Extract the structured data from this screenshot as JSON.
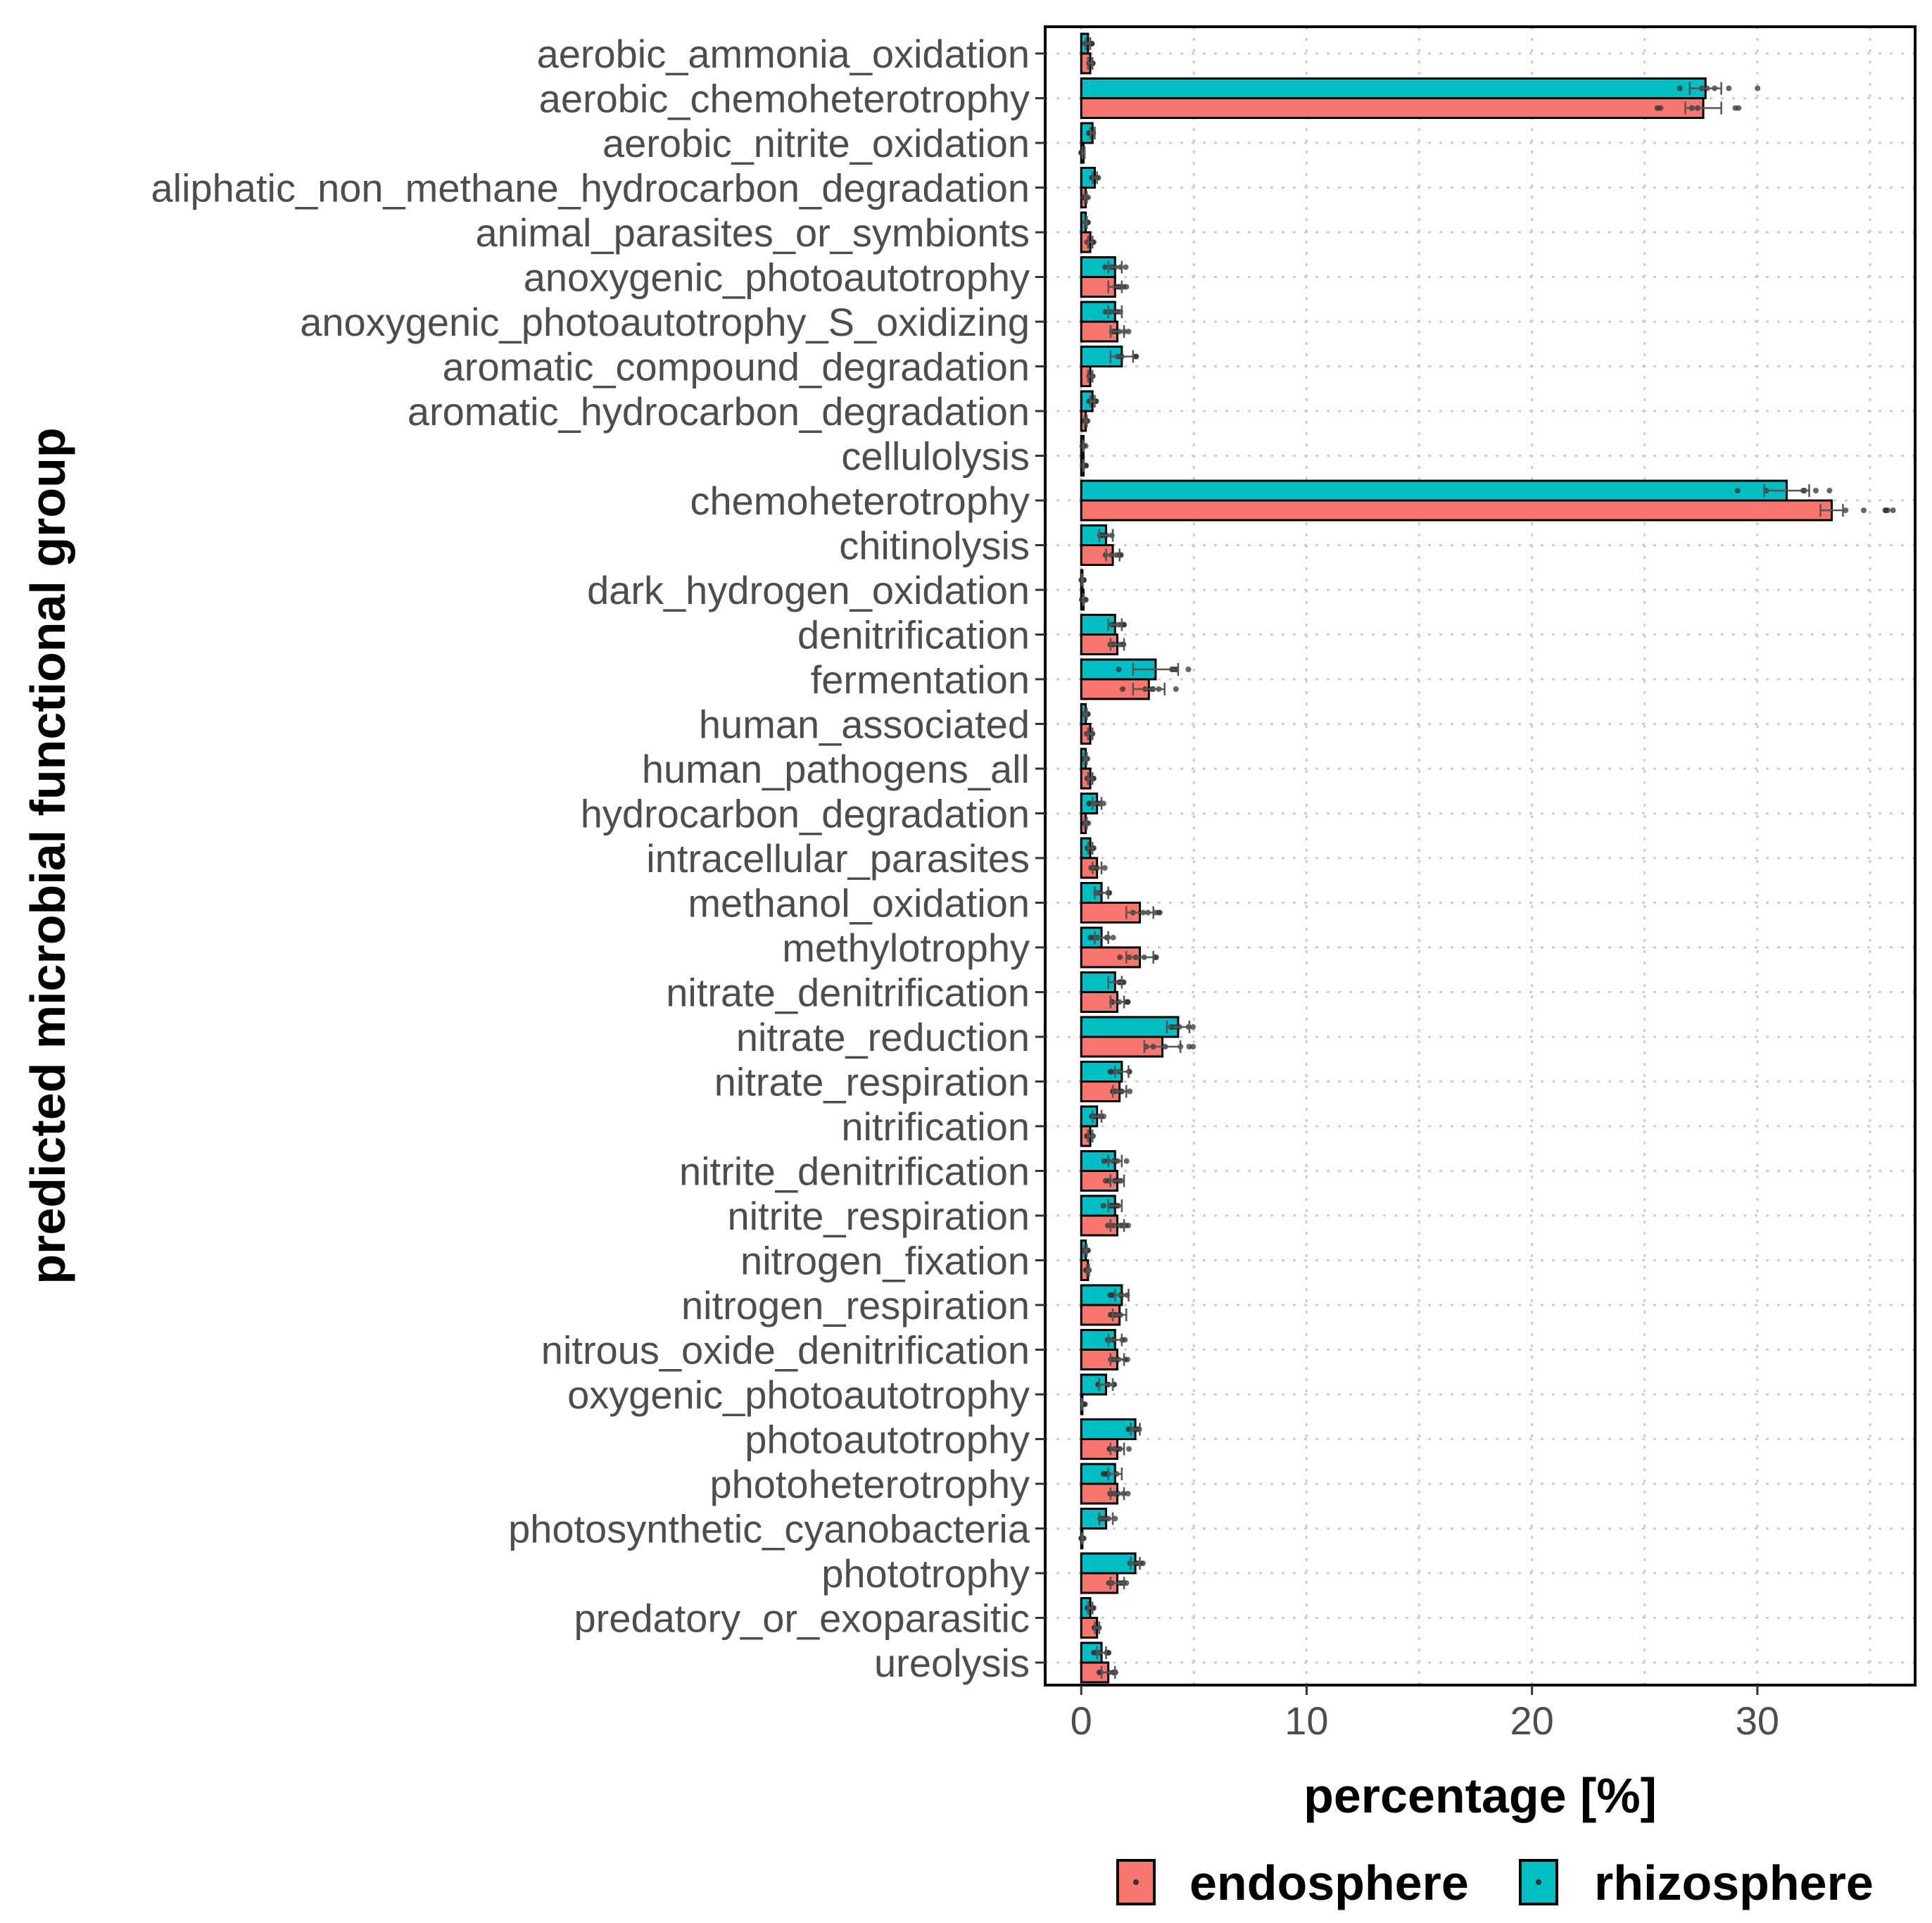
{
  "chart_data": {
    "type": "bar",
    "orientation": "horizontal",
    "xlabel": "percentage [%]",
    "ylabel": "predicted microbial functional group",
    "xlim": [
      -1.6,
      37
    ],
    "xticks": [
      0,
      10,
      20,
      30
    ],
    "xtick_labels": [
      "0",
      "10",
      "20",
      "30"
    ],
    "grid": true,
    "legend_position": "bottom",
    "categories": [
      "aerobic_ammonia_oxidation",
      "aerobic_chemoheterotrophy",
      "aerobic_nitrite_oxidation",
      "aliphatic_non_methane_hydrocarbon_degradation",
      "animal_parasites_or_symbionts",
      "anoxygenic_photoautotrophy",
      "anoxygenic_photoautotrophy_S_oxidizing",
      "aromatic_compound_degradation",
      "aromatic_hydrocarbon_degradation",
      "cellulolysis",
      "chemoheterotrophy",
      "chitinolysis",
      "dark_hydrogen_oxidation",
      "denitrification",
      "fermentation",
      "human_associated",
      "human_pathogens_all",
      "hydrocarbon_degradation",
      "intracellular_parasites",
      "methanol_oxidation",
      "methylotrophy",
      "nitrate_denitrification",
      "nitrate_reduction",
      "nitrate_respiration",
      "nitrification",
      "nitrite_denitrification",
      "nitrite_respiration",
      "nitrogen_fixation",
      "nitrogen_respiration",
      "nitrous_oxide_denitrification",
      "oxygenic_photoautotrophy",
      "photoautotrophy",
      "photoheterotrophy",
      "photosynthetic_cyanobacteria",
      "phototrophy",
      "predatory_or_exoparasitic",
      "ureolysis"
    ],
    "series": [
      {
        "name": "rhizosphere",
        "color": "#00BFC4",
        "values": [
          0.3,
          27.7,
          0.5,
          0.6,
          0.2,
          1.5,
          1.5,
          1.8,
          0.5,
          0.1,
          31.3,
          1.1,
          0.05,
          1.5,
          3.3,
          0.2,
          0.2,
          0.7,
          0.4,
          0.9,
          0.9,
          1.5,
          4.3,
          1.8,
          0.7,
          1.5,
          1.5,
          0.2,
          1.8,
          1.5,
          1.1,
          2.4,
          1.5,
          1.1,
          2.4,
          0.4,
          0.9
        ],
        "errors": [
          0.1,
          0.7,
          0.1,
          0.1,
          0.05,
          0.3,
          0.3,
          0.5,
          0.1,
          0.02,
          1.0,
          0.3,
          0.02,
          0.3,
          1.0,
          0.05,
          0.05,
          0.2,
          0.1,
          0.3,
          0.3,
          0.3,
          0.5,
          0.3,
          0.2,
          0.3,
          0.3,
          0.05,
          0.3,
          0.3,
          0.3,
          0.2,
          0.3,
          0.3,
          0.2,
          0.1,
          0.2
        ]
      },
      {
        "name": "endosphere",
        "color": "#F8766D",
        "values": [
          0.4,
          27.6,
          0.1,
          0.2,
          0.4,
          1.5,
          1.6,
          0.4,
          0.2,
          0.1,
          33.3,
          1.4,
          0.1,
          1.6,
          3.0,
          0.4,
          0.4,
          0.2,
          0.7,
          2.6,
          2.6,
          1.6,
          3.6,
          1.7,
          0.4,
          1.6,
          1.6,
          0.3,
          1.7,
          1.6,
          0.05,
          1.6,
          1.6,
          0.05,
          1.6,
          0.7,
          1.2
        ],
        "errors": [
          0.1,
          0.8,
          0.05,
          0.05,
          0.1,
          0.3,
          0.3,
          0.1,
          0.05,
          0.02,
          0.5,
          0.3,
          0.02,
          0.3,
          0.7,
          0.1,
          0.1,
          0.05,
          0.2,
          0.6,
          0.6,
          0.3,
          0.8,
          0.3,
          0.1,
          0.3,
          0.3,
          0.05,
          0.3,
          0.3,
          0.02,
          0.3,
          0.3,
          0.02,
          0.3,
          0.1,
          0.3
        ]
      }
    ],
    "legend": [
      {
        "label": "endosphere",
        "color": "#F8766D"
      },
      {
        "label": "rhizosphere",
        "color": "#00BFC4"
      }
    ]
  }
}
